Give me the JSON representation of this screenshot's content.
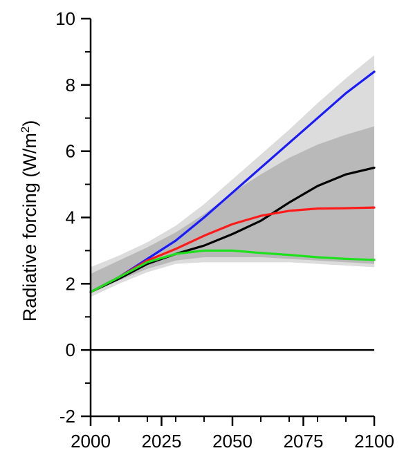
{
  "chart_data": {
    "type": "line",
    "title": "",
    "xlabel": "",
    "ylabel": "Radiative forcing (W/m²)",
    "ylabel_parts": {
      "main": "Radiative forcing (W/m",
      "sup": "2",
      "end": ")"
    },
    "xlim": [
      2000,
      2100
    ],
    "ylim": [
      -2,
      10
    ],
    "xticks": [
      2000,
      2025,
      2050,
      2075,
      2100
    ],
    "yticks": [
      -2,
      0,
      2,
      4,
      6,
      8,
      10
    ],
    "grid": false,
    "legend": "none",
    "zero_line": true,
    "bands": [
      {
        "color": "#dcdcdc",
        "x": [
          2000,
          2010,
          2020,
          2030,
          2040,
          2050,
          2060,
          2070,
          2080,
          2090,
          2100
        ],
        "upper": [
          2.5,
          2.85,
          3.25,
          3.75,
          4.4,
          5.15,
          5.9,
          6.65,
          7.45,
          8.2,
          8.9
        ],
        "lower": [
          1.6,
          2.0,
          2.35,
          2.6,
          2.65,
          2.65,
          2.65,
          2.65,
          2.6,
          2.55,
          2.5
        ]
      },
      {
        "color": "#b9b9b9",
        "x": [
          2000,
          2010,
          2020,
          2030,
          2040,
          2050,
          2060,
          2070,
          2080,
          2090,
          2100
        ],
        "upper": [
          2.3,
          2.7,
          3.1,
          3.55,
          4.1,
          4.75,
          5.3,
          5.8,
          6.2,
          6.5,
          6.75
        ],
        "lower": [
          1.75,
          2.1,
          2.45,
          2.7,
          2.8,
          2.8,
          2.8,
          2.75,
          2.7,
          2.65,
          2.6
        ]
      }
    ],
    "series": [
      {
        "color": "#1a1aff",
        "x": [
          2000,
          2010,
          2020,
          2030,
          2040,
          2050,
          2060,
          2070,
          2080,
          2090,
          2100
        ],
        "values": [
          1.75,
          2.2,
          2.75,
          3.3,
          4.0,
          4.75,
          5.5,
          6.25,
          7.0,
          7.75,
          8.4
        ]
      },
      {
        "color": "#000000",
        "x": [
          2000,
          2010,
          2020,
          2030,
          2040,
          2050,
          2060,
          2070,
          2080,
          2090,
          2100
        ],
        "values": [
          1.75,
          2.15,
          2.6,
          2.9,
          3.15,
          3.5,
          3.9,
          4.45,
          4.95,
          5.3,
          5.5
        ]
      },
      {
        "color": "#ff1a1a",
        "x": [
          2000,
          2010,
          2020,
          2030,
          2040,
          2050,
          2060,
          2070,
          2080,
          2090,
          2100
        ],
        "values": [
          1.75,
          2.2,
          2.7,
          3.05,
          3.45,
          3.8,
          4.05,
          4.2,
          4.27,
          4.28,
          4.3
        ]
      },
      {
        "color": "#1ee01e",
        "x": [
          2000,
          2010,
          2020,
          2030,
          2040,
          2050,
          2060,
          2070,
          2080,
          2090,
          2100
        ],
        "values": [
          1.75,
          2.2,
          2.65,
          2.9,
          3.0,
          3.0,
          2.93,
          2.87,
          2.8,
          2.75,
          2.72
        ]
      }
    ]
  }
}
